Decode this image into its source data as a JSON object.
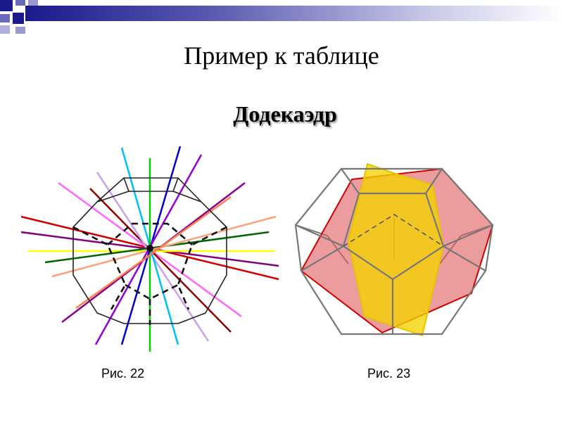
{
  "slide": {
    "title": "Пример к таблице",
    "subtitle": "Додекаэдр"
  },
  "figures": [
    {
      "caption": "Рис. 22"
    },
    {
      "caption": "Рис. 23"
    }
  ],
  "colors": {
    "header_band_start": "#1a1a8c",
    "header_band_end": "#ffffff",
    "plane_red": "#e05a5a",
    "plane_yellow": "#f5d400"
  }
}
